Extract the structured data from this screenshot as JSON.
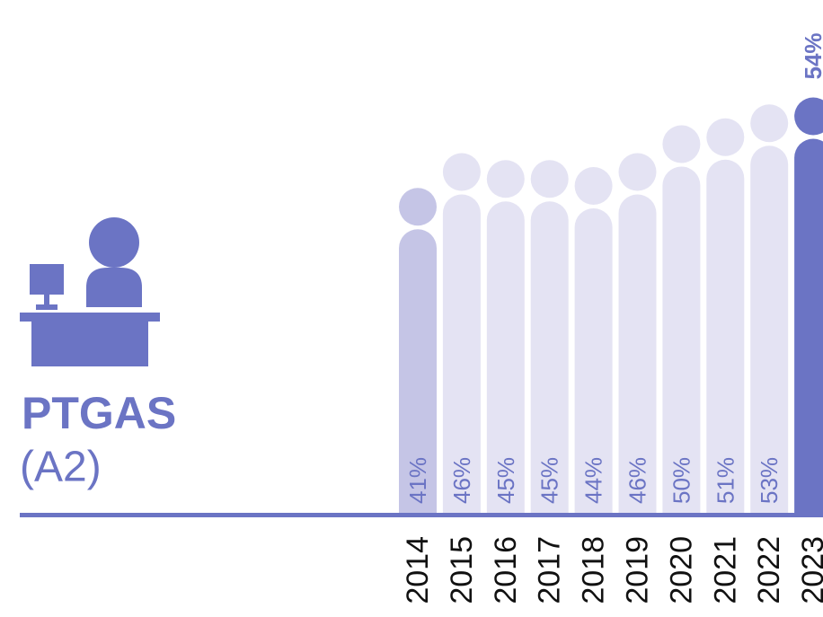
{
  "chart_data": {
    "type": "bar",
    "title": "PTGAS",
    "subtitle": "(A2)",
    "categories": [
      "2014",
      "2015",
      "2016",
      "2017",
      "2018",
      "2019",
      "2020",
      "2021",
      "2022",
      "2023"
    ],
    "values": [
      41,
      46,
      45,
      45,
      44,
      46,
      50,
      51,
      53,
      54
    ],
    "value_labels": [
      "41%",
      "46%",
      "45%",
      "45%",
      "44%",
      "46%",
      "50%",
      "51%",
      "53%",
      "54%"
    ],
    "colors": [
      "#c5c5e6",
      "#e4e3f3",
      "#e4e3f3",
      "#e4e3f3",
      "#e4e3f3",
      "#e4e3f3",
      "#e4e3f3",
      "#e4e3f3",
      "#e4e3f3",
      "#6b74c4"
    ]
  }
}
